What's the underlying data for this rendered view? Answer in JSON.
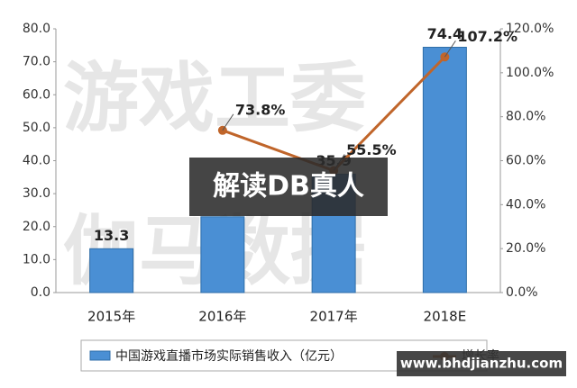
{
  "chart_data": {
    "type": "bar-line",
    "categories": [
      "2015年",
      "2016年",
      "2017年",
      "2018E"
    ],
    "series": [
      {
        "name": "中国游戏直播市场实际销售收入（亿元）",
        "type": "bar",
        "color": "#4a8fd4",
        "values": [
          13.3,
          23.0,
          35.9,
          74.4
        ],
        "value_labels": [
          "13.3",
          null,
          "35.9",
          "74.4"
        ]
      },
      {
        "name": "增长率",
        "type": "line",
        "axis": "y2",
        "color": "#c0652a",
        "values": [
          null,
          73.8,
          55.5,
          107.2
        ],
        "value_labels": [
          null,
          "73.8%",
          "55.5%",
          "107.2%"
        ]
      }
    ],
    "ylim": [
      0,
      80
    ],
    "yticks": [
      {
        "value": 0,
        "label": "0.0"
      },
      {
        "value": 10,
        "label": "10.0"
      },
      {
        "value": 20,
        "label": "20.0"
      },
      {
        "value": 30,
        "label": "30.0"
      },
      {
        "value": 40,
        "label": "40.0"
      },
      {
        "value": 50,
        "label": "50.0"
      },
      {
        "value": 60,
        "label": "60.0"
      },
      {
        "value": 70,
        "label": "70.0"
      },
      {
        "value": 80,
        "label": "80.0"
      }
    ],
    "y2lim": [
      0,
      120
    ],
    "y2ticks": [
      {
        "value": 0,
        "label": "0.0%"
      },
      {
        "value": 20,
        "label": "20.0%"
      },
      {
        "value": 40,
        "label": "40.0%"
      },
      {
        "value": 60,
        "label": "60.0%"
      },
      {
        "value": 80,
        "label": "80.0%"
      },
      {
        "value": 100,
        "label": "100.0%"
      },
      {
        "value": 120,
        "label": "120.0%"
      }
    ],
    "grid": false
  },
  "overlays": {
    "banner": "解读DB真人",
    "site": "www.bhdjianzhu.com",
    "watermark": [
      "游戏工委",
      "伽马数据"
    ]
  }
}
